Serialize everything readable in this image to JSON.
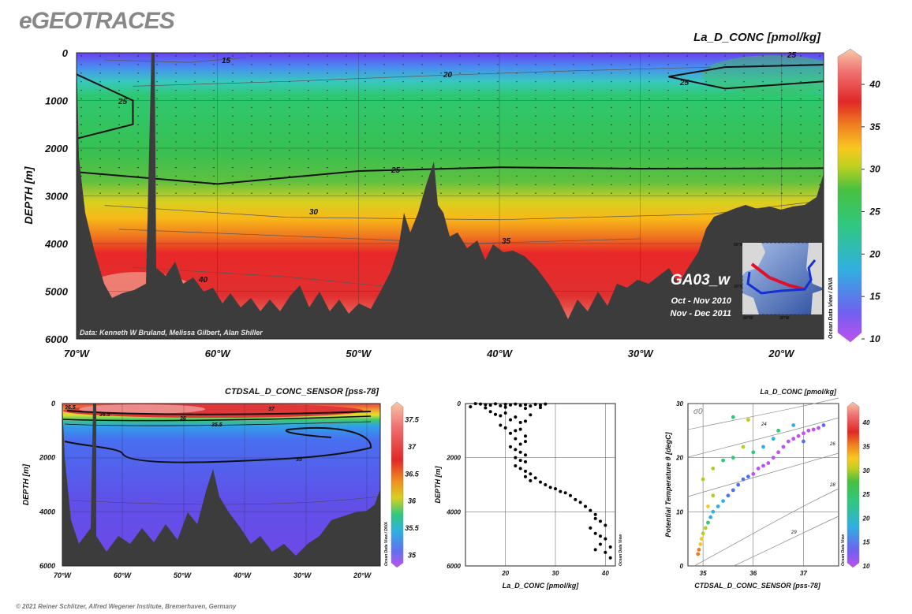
{
  "logo": "eGEOTRACES",
  "credit": "© 2021 Reiner Schlitzer, Alfred Wegener Institute, Bremerhaven, Germany",
  "watermark": "Ocean Data View / DIVA",
  "watermark_short": "Ocean Data View",
  "main_section": {
    "title": "La_D_CONC [pmol/kg]",
    "ylabel": "DEPTH [m]",
    "y_ticks": [
      "0",
      "1000",
      "2000",
      "3000",
      "4000",
      "5000",
      "6000"
    ],
    "x_ticks": [
      "70°W",
      "60°W",
      "50°W",
      "40°W",
      "30°W",
      "20°W"
    ],
    "colorbar_ticks": [
      "40",
      "35",
      "30",
      "25",
      "20",
      "15",
      "10"
    ],
    "contour_labels": [
      "15",
      "20",
      "25",
      "25",
      "25",
      "25",
      "30",
      "35",
      "40"
    ],
    "data_credit": "Data: Kenneth W Bruland, Melissa Gilbert, Alan Shiller",
    "cruise": "GA03_w",
    "dates": [
      "Oct - Nov 2010",
      "Nov - Dec 2011"
    ],
    "map_lat_labels": [
      "60°N",
      "30°N"
    ],
    "map_lon_labels": [
      "60°W",
      "30°W"
    ]
  },
  "colors": {
    "bathymetry": "#3c3c3c",
    "track_red": "#e0102a",
    "track_blue": "#1530d0"
  },
  "chart_data": [
    {
      "type": "heatmap",
      "title": "La_D_CONC [pmol/kg]",
      "ylabel": "DEPTH [m]",
      "xlim": [
        -70,
        -17
      ],
      "ylim": [
        6000,
        0
      ],
      "colorbar_range": [
        10,
        44
      ],
      "contours": [
        {
          "level": 25,
          "points": [
            [
              -70,
              450
            ],
            [
              -66,
              1000
            ],
            [
              -66,
              1500
            ],
            [
              -70,
              1800
            ]
          ]
        },
        {
          "level": 25,
          "points": [
            [
              -70,
              2500
            ],
            [
              -60,
              2750
            ],
            [
              -50,
              2480
            ],
            [
              -40,
              2400
            ],
            [
              -30,
              2430
            ],
            [
              -17,
              2420
            ]
          ]
        },
        {
          "level": 25,
          "points": [
            [
              -17,
              600
            ],
            [
              -24,
              750
            ],
            [
              -28,
              500
            ],
            [
              -24,
              300
            ],
            [
              -17,
              250
            ]
          ]
        },
        {
          "level": 20,
          "points": [
            [
              -66,
              700
            ],
            [
              -55,
              600
            ],
            [
              -45,
              480
            ],
            [
              -35,
              380
            ],
            [
              -25,
              300
            ]
          ]
        },
        {
          "level": 15,
          "points": [
            [
              -68,
              150
            ],
            [
              -62,
              200
            ],
            [
              -58,
              100
            ]
          ]
        },
        {
          "level": 30,
          "points": [
            [
              -68,
              3200
            ],
            [
              -55,
              3450
            ],
            [
              -40,
              3500
            ],
            [
              -25,
              3380
            ],
            [
              -17,
              3100
            ]
          ]
        },
        {
          "level": 35,
          "points": [
            [
              -67,
              3700
            ],
            [
              -50,
              3900
            ],
            [
              -42,
              4000
            ],
            [
              -30,
              3900
            ]
          ]
        },
        {
          "level": 40,
          "points": [
            [
              -66,
              4500
            ],
            [
              -55,
              4700
            ],
            [
              -48,
              4900
            ]
          ]
        }
      ]
    },
    {
      "type": "heatmap",
      "title": "CTDSAL_D_CONC_SENSOR [pss-78]",
      "ylabel": "DEPTH [m]",
      "x_ticks": [
        "70°W",
        "60°W",
        "50°W",
        "40°W",
        "30°W",
        "20°W"
      ],
      "y_ticks": [
        "0",
        "2000",
        "4000",
        "6000"
      ],
      "colorbar_ticks": [
        "37.5",
        "37",
        "36.5",
        "36",
        "35.5",
        "35"
      ],
      "contour_labels": [
        "36.5",
        "37",
        "36",
        "35.5",
        "35"
      ],
      "xlim": [
        -70,
        -17
      ],
      "ylim": [
        6000,
        0
      ],
      "colorbar_range": [
        34.8,
        37.8
      ]
    },
    {
      "type": "scatter",
      "xlabel": "La_D_CONC [pmol/kg]",
      "ylabel": "DEPTH [m]",
      "x_ticks": [
        "20",
        "30",
        "40"
      ],
      "y_ticks": [
        "0",
        "2000",
        "4000",
        "6000"
      ],
      "xlim": [
        12,
        42
      ],
      "ylim": [
        6000,
        0
      ],
      "points": [
        [
          14,
          5
        ],
        [
          15,
          20
        ],
        [
          16,
          40
        ],
        [
          17,
          60
        ],
        [
          18,
          10
        ],
        [
          19,
          80
        ],
        [
          20,
          30
        ],
        [
          21,
          50
        ],
        [
          22,
          20
        ],
        [
          23,
          70
        ],
        [
          24,
          40
        ],
        [
          25,
          90
        ],
        [
          26,
          30
        ],
        [
          27,
          60
        ],
        [
          28,
          20
        ],
        [
          13,
          120
        ],
        [
          16,
          160
        ],
        [
          20,
          140
        ],
        [
          24,
          180
        ],
        [
          27,
          150
        ],
        [
          17,
          300
        ],
        [
          18,
          400
        ],
        [
          19,
          450
        ],
        [
          20,
          350
        ],
        [
          21,
          600
        ],
        [
          22,
          500
        ],
        [
          23,
          700
        ],
        [
          24,
          650
        ],
        [
          25,
          420
        ],
        [
          19,
          800
        ],
        [
          20,
          900
        ],
        [
          22,
          1000
        ],
        [
          23,
          950
        ],
        [
          21,
          1100
        ],
        [
          24,
          1200
        ],
        [
          22,
          1300
        ],
        [
          23,
          1500
        ],
        [
          24,
          1400
        ],
        [
          21,
          1600
        ],
        [
          22,
          1700
        ],
        [
          23,
          1800
        ],
        [
          24,
          1900
        ],
        [
          22,
          2000
        ],
        [
          23,
          2100
        ],
        [
          24,
          2150
        ],
        [
          22,
          2300
        ],
        [
          23,
          2400
        ],
        [
          24,
          2500
        ],
        [
          25,
          2600
        ],
        [
          24,
          2700
        ],
        [
          26,
          2750
        ],
        [
          25,
          2850
        ],
        [
          27,
          2900
        ],
        [
          28,
          3000
        ],
        [
          29,
          3100
        ],
        [
          30,
          3150
        ],
        [
          31,
          3250
        ],
        [
          32,
          3300
        ],
        [
          33,
          3400
        ],
        [
          34,
          3550
        ],
        [
          35,
          3650
        ],
        [
          36,
          3800
        ],
        [
          37,
          3950
        ],
        [
          38,
          4100
        ],
        [
          38,
          4250
        ],
        [
          39,
          4350
        ],
        [
          40,
          4500
        ],
        [
          37,
          4600
        ],
        [
          38,
          4800
        ],
        [
          39,
          4900
        ],
        [
          40,
          5000
        ],
        [
          39,
          5200
        ],
        [
          41,
          5300
        ],
        [
          38,
          5400
        ],
        [
          40,
          5500
        ],
        [
          41,
          5700
        ]
      ]
    },
    {
      "type": "scatter",
      "xlabel": "CTDSAL_D_CONC_SENSOR [pss-78]",
      "ylabel": "Potential Temperature θ [degC]",
      "x_ticks": [
        "35",
        "36",
        "37"
      ],
      "y_ticks": [
        "0",
        "10",
        "20",
        "30"
      ],
      "colorbar_ticks": [
        "40",
        "35",
        "30",
        "25",
        "20",
        "15",
        "10"
      ],
      "isopycnal_symbol": "σ0",
      "isopycnal_labels": [
        "24",
        "26",
        "28",
        "29"
      ],
      "xlim": [
        34.7,
        37.7
      ],
      "ylim": [
        0,
        30
      ],
      "points": [
        [
          34.9,
          2.2,
          40
        ],
        [
          34.92,
          3,
          38
        ],
        [
          34.95,
          4,
          35
        ],
        [
          34.97,
          5,
          33
        ],
        [
          35.0,
          6,
          31
        ],
        [
          35.05,
          7,
          29
        ],
        [
          35.1,
          8,
          27
        ],
        [
          35.15,
          9,
          25
        ],
        [
          35.2,
          10,
          23
        ],
        [
          35.3,
          11,
          22
        ],
        [
          35.4,
          12,
          21
        ],
        [
          35.5,
          13,
          20
        ],
        [
          35.6,
          14,
          19
        ],
        [
          35.7,
          15,
          18
        ],
        [
          35.8,
          16,
          17
        ],
        [
          35.9,
          16.5,
          16
        ],
        [
          36.0,
          17,
          15
        ],
        [
          36.1,
          18,
          14
        ],
        [
          36.2,
          18.5,
          14
        ],
        [
          36.3,
          19,
          13
        ],
        [
          36.4,
          20,
          13
        ],
        [
          36.5,
          21,
          12
        ],
        [
          36.6,
          22,
          13
        ],
        [
          36.7,
          23,
          14
        ],
        [
          36.8,
          23.5,
          15
        ],
        [
          36.9,
          24,
          14
        ],
        [
          37.0,
          24.5,
          13
        ],
        [
          37.1,
          25,
          14
        ],
        [
          37.2,
          25.2,
          15
        ],
        [
          37.3,
          25.5,
          14
        ],
        [
          36.2,
          22,
          25
        ],
        [
          36.0,
          21,
          28
        ],
        [
          35.8,
          22,
          30
        ],
        [
          35.6,
          20,
          28
        ],
        [
          35.4,
          19.5,
          26
        ],
        [
          35.2,
          18,
          29
        ],
        [
          35.0,
          16,
          31
        ],
        [
          35.2,
          13,
          30
        ],
        [
          35.1,
          11,
          32
        ],
        [
          36.5,
          25,
          26
        ],
        [
          36.8,
          26,
          24
        ],
        [
          35.6,
          27.5,
          28
        ],
        [
          35.9,
          27,
          30
        ],
        [
          36.4,
          23.5,
          22
        ],
        [
          37.0,
          23,
          18
        ],
        [
          37.4,
          26,
          16
        ]
      ]
    }
  ]
}
